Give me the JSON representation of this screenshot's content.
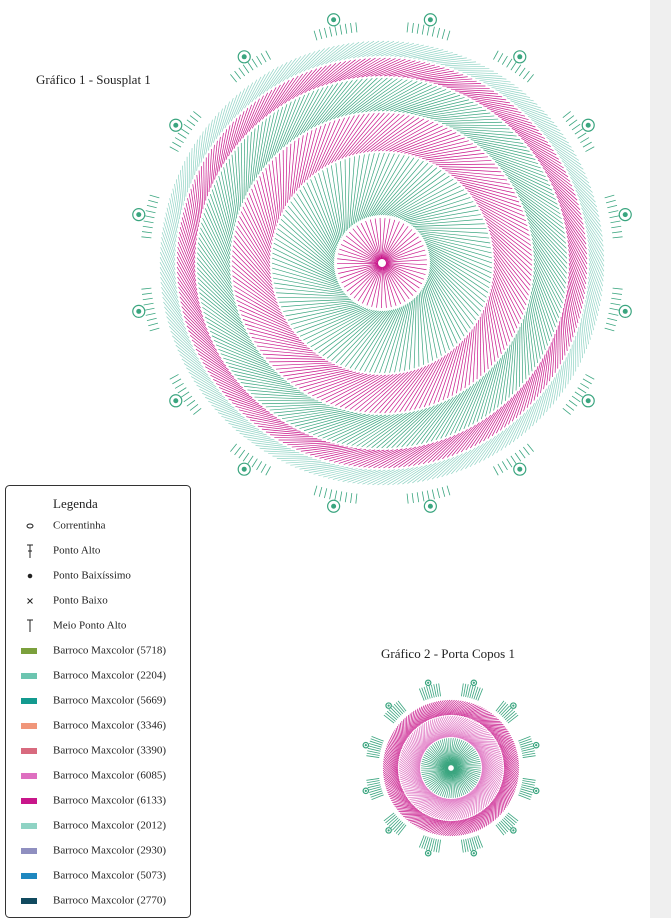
{
  "chart1": {
    "title": "Gráfico 1 - Sousplat 1"
  },
  "legend": {
    "title": "Legenda",
    "symbols": [
      {
        "label": "Correntinha"
      },
      {
        "label": "Ponto Alto"
      },
      {
        "label": "Ponto Baixíssimo"
      },
      {
        "label": "Ponto Baixo"
      },
      {
        "label": "Meio Ponto Alto"
      }
    ],
    "colors": [
      {
        "label": "Barroco Maxcolor (5718)",
        "color": "#7ba03c"
      },
      {
        "label": "Barroco Maxcolor (2204)",
        "color": "#6cc5b0"
      },
      {
        "label": "Barroco Maxcolor (5669)",
        "color": "#139a8f"
      },
      {
        "label": "Barroco Maxcolor (3346)",
        "color": "#f0967a"
      },
      {
        "label": "Barroco Maxcolor (3390)",
        "color": "#d86a7e"
      },
      {
        "label": "Barroco Maxcolor (6085)",
        "color": "#de6fc0"
      },
      {
        "label": "Barroco Maxcolor (6133)",
        "color": "#c8168a"
      },
      {
        "label": "Barroco Maxcolor (2012)",
        "color": "#8fd3c4"
      },
      {
        "label": "Barroco Maxcolor (2930)",
        "color": "#8f8fc0"
      },
      {
        "label": "Barroco Maxcolor (5073)",
        "color": "#1f88c0"
      },
      {
        "label": "Barroco Maxcolor (2770)",
        "color": "#114a5f"
      }
    ]
  },
  "chart2": {
    "title": "Gráfico 2 - Porta Copos 1"
  }
}
